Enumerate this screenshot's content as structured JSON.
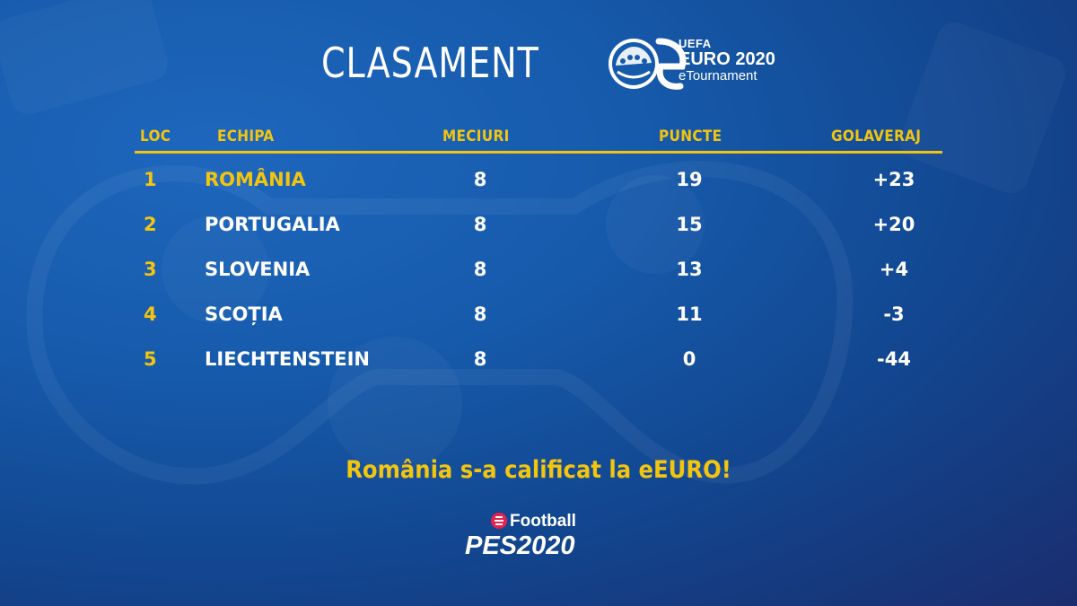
{
  "header": {
    "title": "CLASAMENT",
    "logo": {
      "uefa": "UEFA",
      "euro": "EURO 2020",
      "etournament": "eTournament"
    }
  },
  "table": {
    "columns": [
      "LOC",
      "ECHIPA",
      "MECIURI",
      "PUNCTE",
      "GOLAVERAJ"
    ],
    "rows": [
      {
        "loc": "1",
        "team": "ROMÂNIA",
        "meciuri": "8",
        "puncte": "19",
        "golaveraj": "+23",
        "highlight": true
      },
      {
        "loc": "2",
        "team": "PORTUGALIA",
        "meciuri": "8",
        "puncte": "15",
        "golaveraj": "+20",
        "highlight": false
      },
      {
        "loc": "3",
        "team": "SLOVENIA",
        "meciuri": "8",
        "puncte": "13",
        "golaveraj": "+4",
        "highlight": false
      },
      {
        "loc": "4",
        "team": "SCOȚIA",
        "meciuri": "8",
        "puncte": "11",
        "golaveraj": "-3",
        "highlight": false
      },
      {
        "loc": "5",
        "team": "LIECHTENSTEIN",
        "meciuri": "8",
        "puncte": "0",
        "golaveraj": "-44",
        "highlight": false
      }
    ]
  },
  "message": "România s-a calificat la eEURO!",
  "footer_logo": {
    "efootball": "Football",
    "pes": "PES2020"
  },
  "colors": {
    "accent": "#f3c50f",
    "background": "#165aab",
    "text": "#ffffff"
  }
}
